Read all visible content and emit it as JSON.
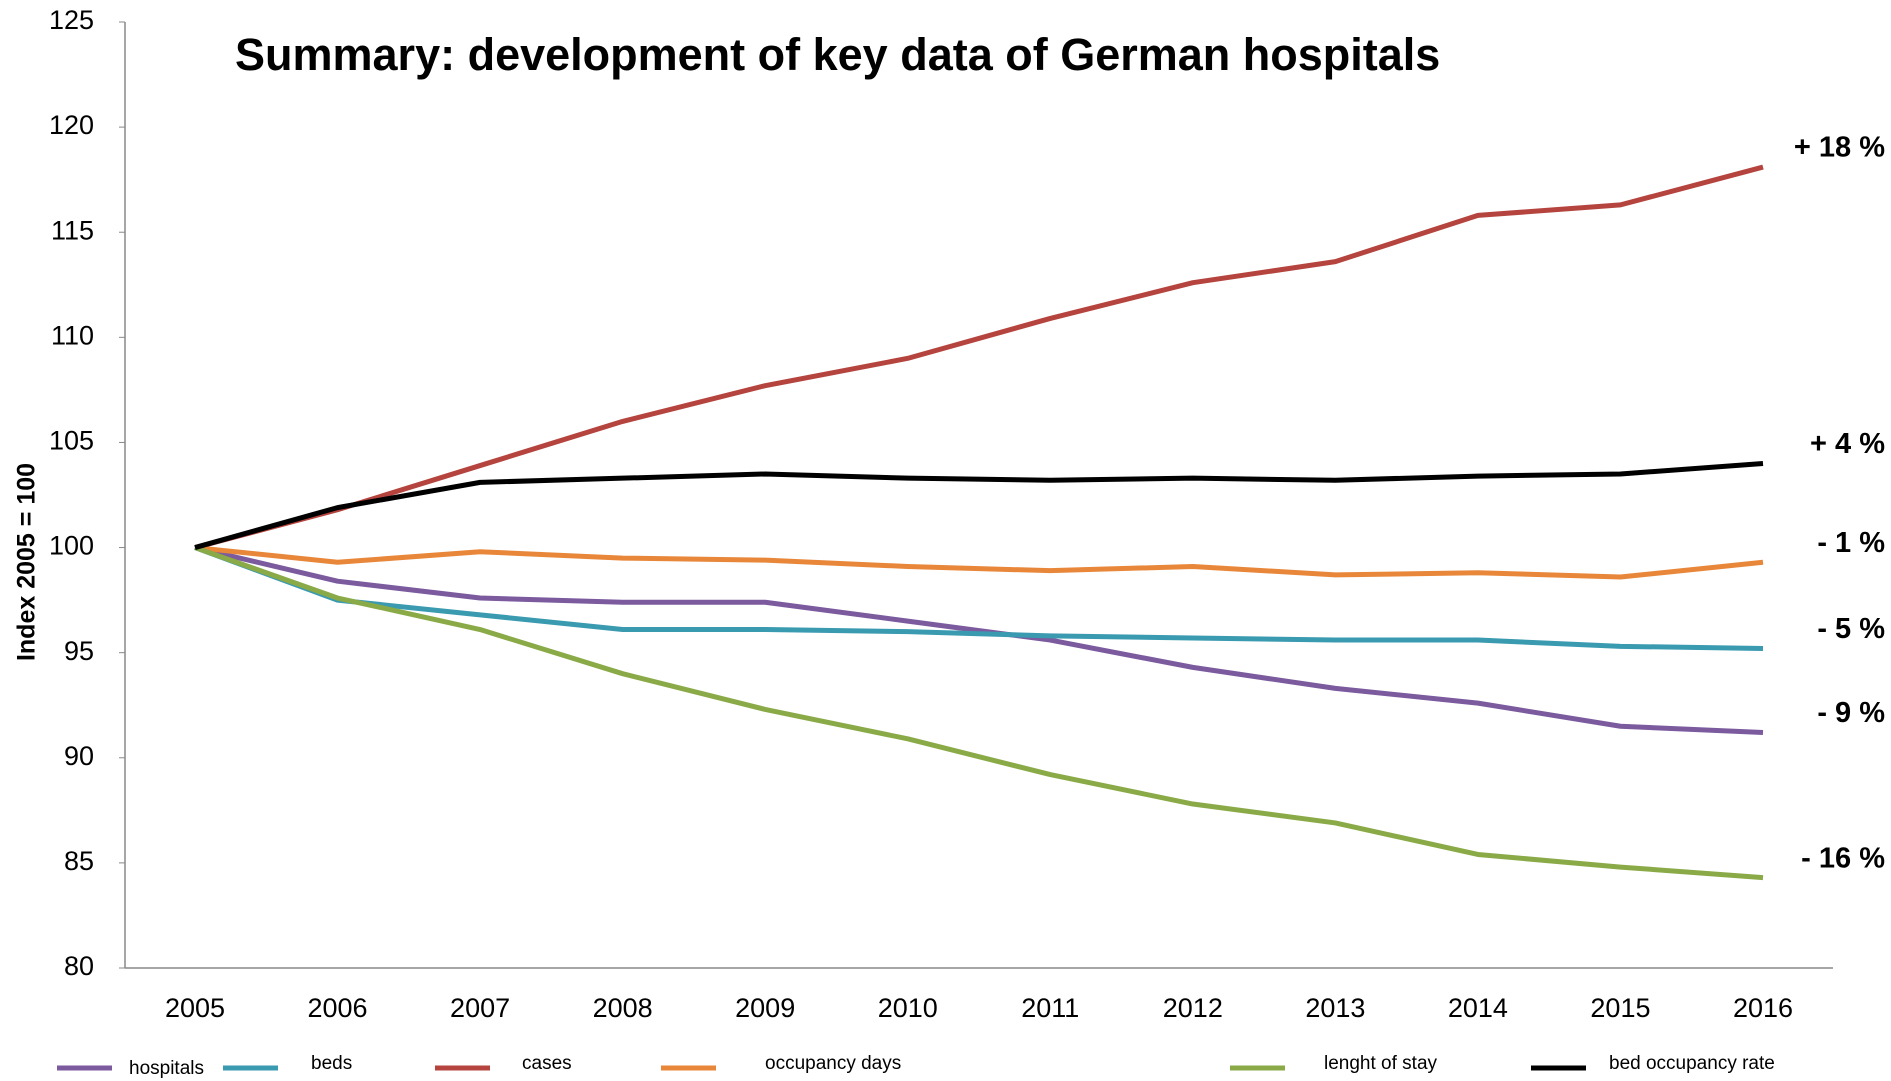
{
  "chart_data": {
    "type": "line",
    "title": "Summary: development of key data of German hospitals",
    "y_label": "Index 2005 = 100",
    "categories": [
      "2005",
      "2006",
      "2007",
      "2008",
      "2009",
      "2010",
      "2011",
      "2012",
      "2013",
      "2014",
      "2015",
      "2016"
    ],
    "ylim": [
      80,
      125
    ],
    "yticks": [
      80,
      85,
      90,
      95,
      100,
      105,
      110,
      115,
      120,
      125
    ],
    "series": [
      {
        "name": "hospitals",
        "color": "#7b5a9e",
        "end_label": "- 9 %",
        "values": [
          100,
          98.4,
          97.6,
          97.4,
          97.4,
          96.5,
          95.6,
          94.3,
          93.3,
          92.6,
          91.5,
          91.2
        ]
      },
      {
        "name": "beds",
        "color": "#3a9ab0",
        "end_label": "- 5 %",
        "values": [
          100,
          97.5,
          96.8,
          96.1,
          96.1,
          96.0,
          95.8,
          95.7,
          95.6,
          95.6,
          95.3,
          95.2
        ]
      },
      {
        "name": "cases",
        "color": "#b5443e",
        "end_label": "+ 18 %",
        "values": [
          100,
          101.8,
          103.9,
          106.0,
          107.7,
          109.0,
          110.9,
          112.6,
          113.6,
          115.8,
          116.3,
          118.1
        ]
      },
      {
        "name": "occupancy days",
        "color": "#e8873a",
        "end_label": "- 1 %",
        "values": [
          100,
          99.3,
          99.8,
          99.5,
          99.4,
          99.1,
          98.9,
          99.1,
          98.7,
          98.8,
          98.6,
          99.3
        ]
      },
      {
        "name": "lenght of stay",
        "color": "#8aaa48",
        "end_label": "-   16 %",
        "values": [
          100,
          97.6,
          96.1,
          94.0,
          92.3,
          90.9,
          89.2,
          87.8,
          86.9,
          85.4,
          84.8,
          84.3
        ]
      },
      {
        "name": "bed occupancy rate",
        "color": "#000000",
        "end_label": "+ 4 %",
        "values": [
          100,
          101.9,
          103.1,
          103.3,
          103.5,
          103.3,
          103.2,
          103.3,
          103.2,
          103.4,
          103.5,
          104.0
        ]
      }
    ]
  }
}
